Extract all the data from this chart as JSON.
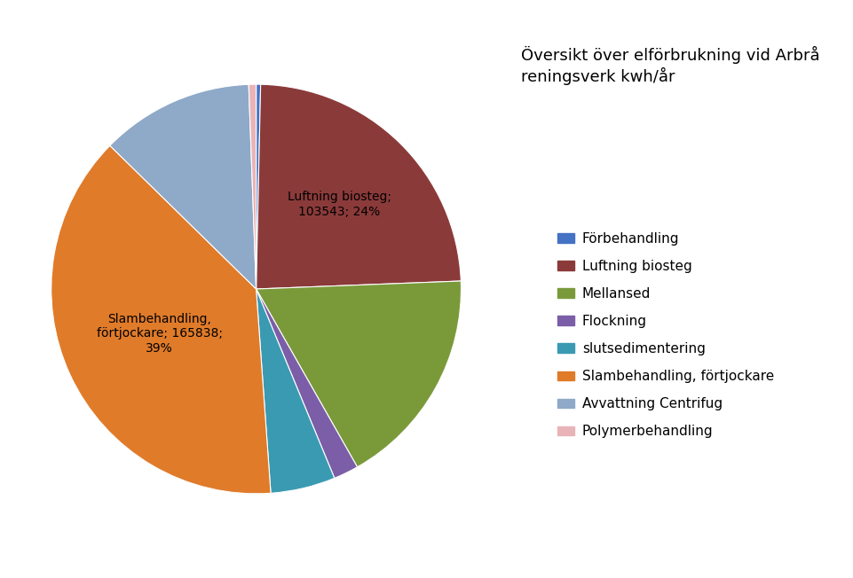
{
  "title": "Översikt över elförbrukning vid Arbrå\nreningsverk kwh/år",
  "labels": [
    "Förbehandling",
    "Luftning biosteg",
    "Mellansed",
    "Flockning",
    "slutsedimentering",
    "Slambehandling, förtjockare",
    "Avvattning Centrifug",
    "Polymerbehandling"
  ],
  "values": [
    1500,
    103543,
    75000,
    8500,
    22000,
    165838,
    52000,
    2500
  ],
  "colors": [
    "#4472C4",
    "#8B3A3A",
    "#7A9A3A",
    "#7B5EA7",
    "#3A9AB2",
    "#E07B2A",
    "#8FA9C8",
    "#E8B4B8"
  ],
  "background_color": "#FFFFFF",
  "title_fontsize": 13,
  "legend_fontsize": 11
}
